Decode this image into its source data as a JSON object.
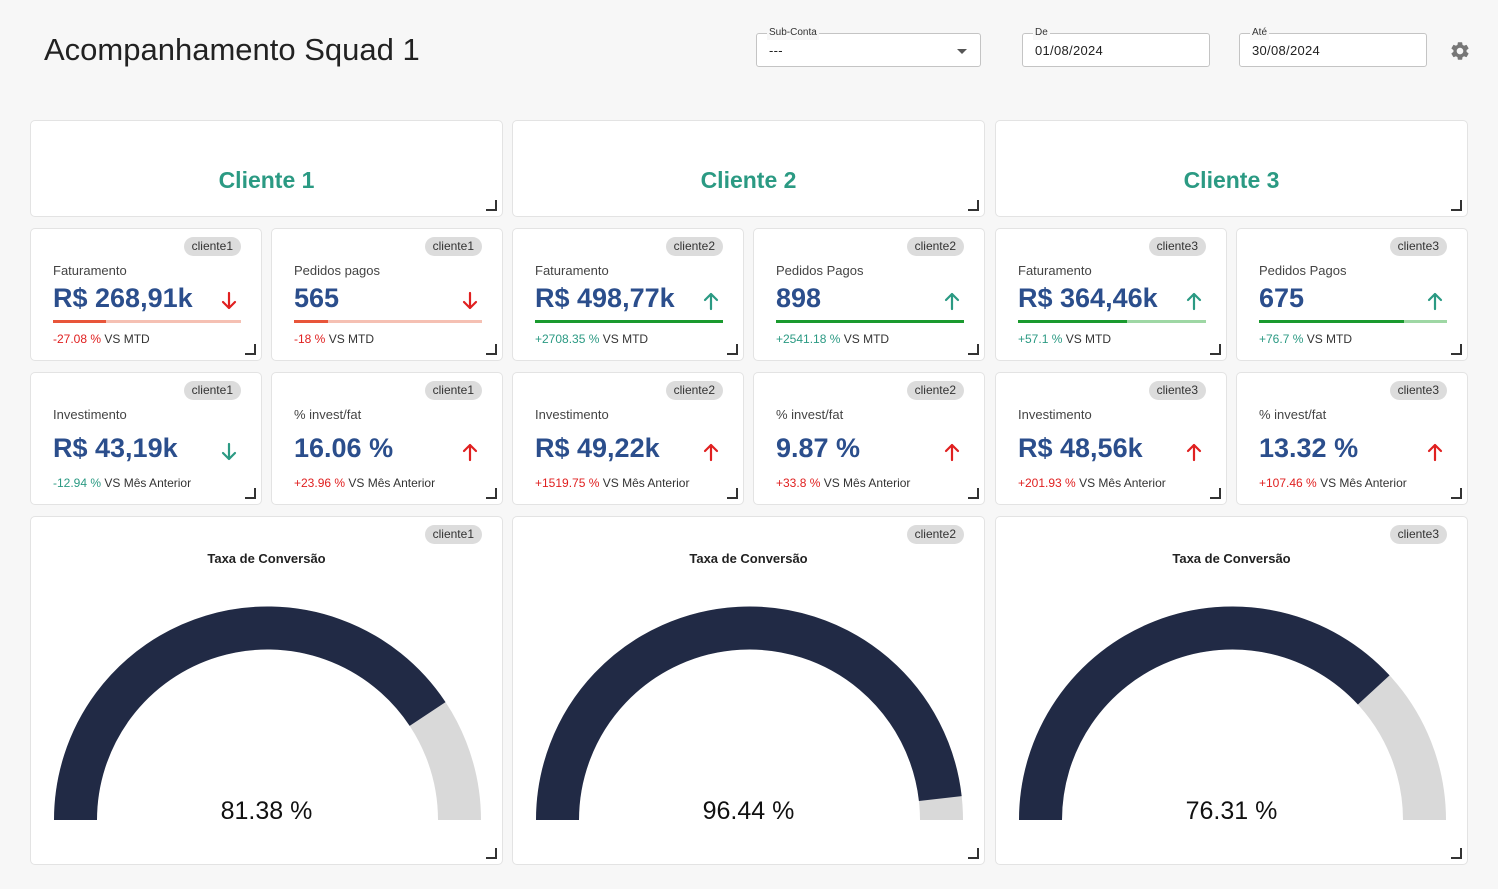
{
  "header": {
    "title": "Acompanhamento Squad 1",
    "subconta": {
      "label": "Sub-Conta",
      "value": "---"
    },
    "de": {
      "label": "De",
      "value": "01/08/2024"
    },
    "ate": {
      "label": "Até",
      "value": "30/08/2024"
    },
    "settings_icon": "gear-icon"
  },
  "colors": {
    "accent_green": "#2b9a83",
    "value_blue": "#2b4e8c",
    "down_red": "#e02020",
    "up_green": "#2b9a83",
    "gauge_fill": "#212a45",
    "gauge_track": "#d9d9d9"
  },
  "clients": [
    {
      "name": "Cliente 1",
      "tag": "cliente1",
      "metrics": [
        {
          "label": "Faturamento",
          "value": "R$ 268,91k",
          "direction": "down",
          "change": "-27.08 %",
          "compare": "VS MTD",
          "change_color": "#e02020",
          "progress": 0.28,
          "bar_color": "#e8553a",
          "track_color": "#f5c0b3"
        },
        {
          "label": "Pedidos pagos",
          "value": "565",
          "direction": "down",
          "change": "-18 %",
          "compare": "VS MTD",
          "change_color": "#e02020",
          "progress": 0.18,
          "bar_color": "#e8553a",
          "track_color": "#f5c0b3"
        }
      ],
      "invest": [
        {
          "label": "Investimento",
          "value": "R$ 43,19k",
          "direction": "down",
          "arrow_color": "#2b9a83",
          "change": "-12.94 %",
          "compare": "VS Mês Anterior",
          "change_color": "#2b9a83"
        },
        {
          "label": "% invest/fat",
          "value": "16.06 %",
          "direction": "up",
          "arrow_color": "#e02020",
          "change": "+23.96 %",
          "compare": "VS Mês Anterior",
          "change_color": "#e02020"
        }
      ],
      "gauge": {
        "title": "Taxa de Conversão",
        "value": 81.38,
        "label": "81.38 %"
      }
    },
    {
      "name": "Cliente 2",
      "tag": "cliente2",
      "metrics": [
        {
          "label": "Faturamento",
          "value": "R$ 498,77k",
          "direction": "up",
          "change": "+2708.35 %",
          "compare": "VS MTD",
          "change_color": "#2b9a83",
          "progress": 1.0,
          "bar_color": "#1a9a2e",
          "track_color": "#9ed7a4"
        },
        {
          "label": "Pedidos Pagos",
          "value": "898",
          "direction": "up",
          "change": "+2541.18 %",
          "compare": "VS MTD",
          "change_color": "#2b9a83",
          "progress": 1.0,
          "bar_color": "#1a9a2e",
          "track_color": "#9ed7a4"
        }
      ],
      "invest": [
        {
          "label": "Investimento",
          "value": "R$ 49,22k",
          "direction": "up",
          "arrow_color": "#e02020",
          "change": "+1519.75 %",
          "compare": "VS Mês Anterior",
          "change_color": "#e02020"
        },
        {
          "label": "% invest/fat",
          "value": "9.87 %",
          "direction": "up",
          "arrow_color": "#e02020",
          "change": "+33.8 %",
          "compare": "VS Mês Anterior",
          "change_color": "#e02020"
        }
      ],
      "gauge": {
        "title": "Taxa de Conversão",
        "value": 96.44,
        "label": "96.44 %"
      }
    },
    {
      "name": "Cliente 3",
      "tag": "cliente3",
      "metrics": [
        {
          "label": "Faturamento",
          "value": "R$ 364,46k",
          "direction": "up",
          "change": "+57.1 %",
          "compare": "VS MTD",
          "change_color": "#2b9a83",
          "progress": 0.58,
          "bar_color": "#1a9a2e",
          "track_color": "#9ed7a4"
        },
        {
          "label": "Pedidos Pagos",
          "value": "675",
          "direction": "up",
          "change": "+76.7 %",
          "compare": "VS MTD",
          "change_color": "#2b9a83",
          "progress": 0.77,
          "bar_color": "#1a9a2e",
          "track_color": "#9ed7a4"
        }
      ],
      "invest": [
        {
          "label": "Investimento",
          "value": "R$ 48,56k",
          "direction": "up",
          "arrow_color": "#e02020",
          "change": "+201.93 %",
          "compare": "VS Mês Anterior",
          "change_color": "#e02020"
        },
        {
          "label": "% invest/fat",
          "value": "13.32 %",
          "direction": "up",
          "arrow_color": "#e02020",
          "change": "+107.46 %",
          "compare": "VS Mês Anterior",
          "change_color": "#e02020"
        }
      ],
      "gauge": {
        "title": "Taxa de Conversão",
        "value": 76.31,
        "label": "76.31 %"
      }
    }
  ]
}
